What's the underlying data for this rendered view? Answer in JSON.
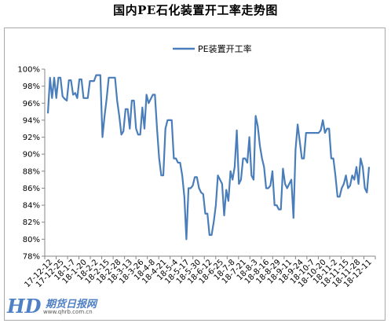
{
  "chart_data": {
    "type": "line",
    "title": "国内PE石化装置开工率走势图",
    "xlabel": "",
    "ylabel": "",
    "ylim": [
      78,
      100
    ],
    "yticks": [
      "78%",
      "80%",
      "82%",
      "84%",
      "86%",
      "88%",
      "90%",
      "92%",
      "94%",
      "96%",
      "98%",
      "100%"
    ],
    "grid": false,
    "legend_position": "top-center",
    "line_color": "#4a7ebb",
    "x_tick_labels": [
      "17-12-12",
      "17-12-25",
      "18-1-7",
      "18-1-20",
      "18-2-2",
      "18-2-15",
      "18-2-28",
      "18-3-13",
      "18-3-26",
      "18-4-8",
      "18-4-21",
      "18-5-4",
      "18-5-17",
      "18-5-30",
      "18-6-12",
      "18-6-25",
      "18-7-8",
      "18-7-21",
      "18-8-3",
      "18-8-16",
      "18-8-29",
      "18-9-11",
      "18-9-24",
      "18-10-7",
      "18-10-20",
      "18-11-2",
      "18-11-15",
      "18-11-28",
      "18-12-11"
    ],
    "series": [
      {
        "name": "PE装置开工率",
        "values": [
          94.8,
          99.0,
          96.6,
          99.0,
          96.6,
          99.0,
          99.0,
          96.8,
          96.5,
          96.3,
          98.7,
          98.7,
          97.0,
          97.2,
          96.6,
          98.8,
          98.8,
          96.6,
          96.6,
          96.6,
          98.6,
          98.6,
          98.6,
          99.3,
          99.3,
          99.3,
          92.0,
          94.5,
          96.5,
          99.0,
          99.0,
          99.0,
          99.0,
          96.3,
          94.5,
          92.3,
          92.7,
          95.3,
          95.3,
          93.0,
          96.3,
          96.3,
          93.0,
          92.3,
          92.3,
          95.5,
          93.0,
          97.0,
          96.0,
          96.5,
          97.0,
          97.0,
          93.0,
          89.5,
          87.5,
          87.5,
          93.0,
          94.0,
          94.0,
          94.0,
          89.5,
          89.5,
          89.0,
          89.0,
          87.5,
          85.0,
          80.0,
          86.0,
          86.0,
          86.3,
          87.3,
          87.3,
          86.0,
          85.5,
          85.3,
          83.0,
          83.0,
          80.5,
          80.5,
          82.0,
          84.0,
          87.5,
          87.0,
          86.5,
          82.8,
          85.8,
          84.5,
          88.0,
          87.0,
          88.5,
          92.8,
          86.5,
          87.0,
          89.5,
          89.5,
          89.0,
          92.0,
          87.5,
          87.0,
          94.5,
          93.3,
          91.0,
          89.5,
          88.5,
          86.0,
          86.0,
          86.3,
          88.0,
          84.0,
          84.0,
          83.5,
          83.5,
          88.3,
          86.5,
          86.0,
          86.5,
          87.0,
          82.5,
          90.5,
          93.5,
          91.5,
          89.5,
          89.5,
          92.5,
          92.5,
          92.5,
          92.5,
          92.5,
          92.5,
          92.5,
          92.8,
          94.0,
          92.5,
          93.0,
          93.0,
          89.5,
          89.5,
          87.5,
          85.0,
          85.0,
          86.0,
          86.5,
          87.5,
          86.0,
          86.3,
          87.5,
          87.0,
          88.5,
          86.5,
          89.5,
          88.5,
          86.0,
          85.5,
          88.5
        ]
      }
    ]
  },
  "watermark": {
    "mark": "HD",
    "name": "期货日报网",
    "url": "www.qhrb.com.cn"
  }
}
